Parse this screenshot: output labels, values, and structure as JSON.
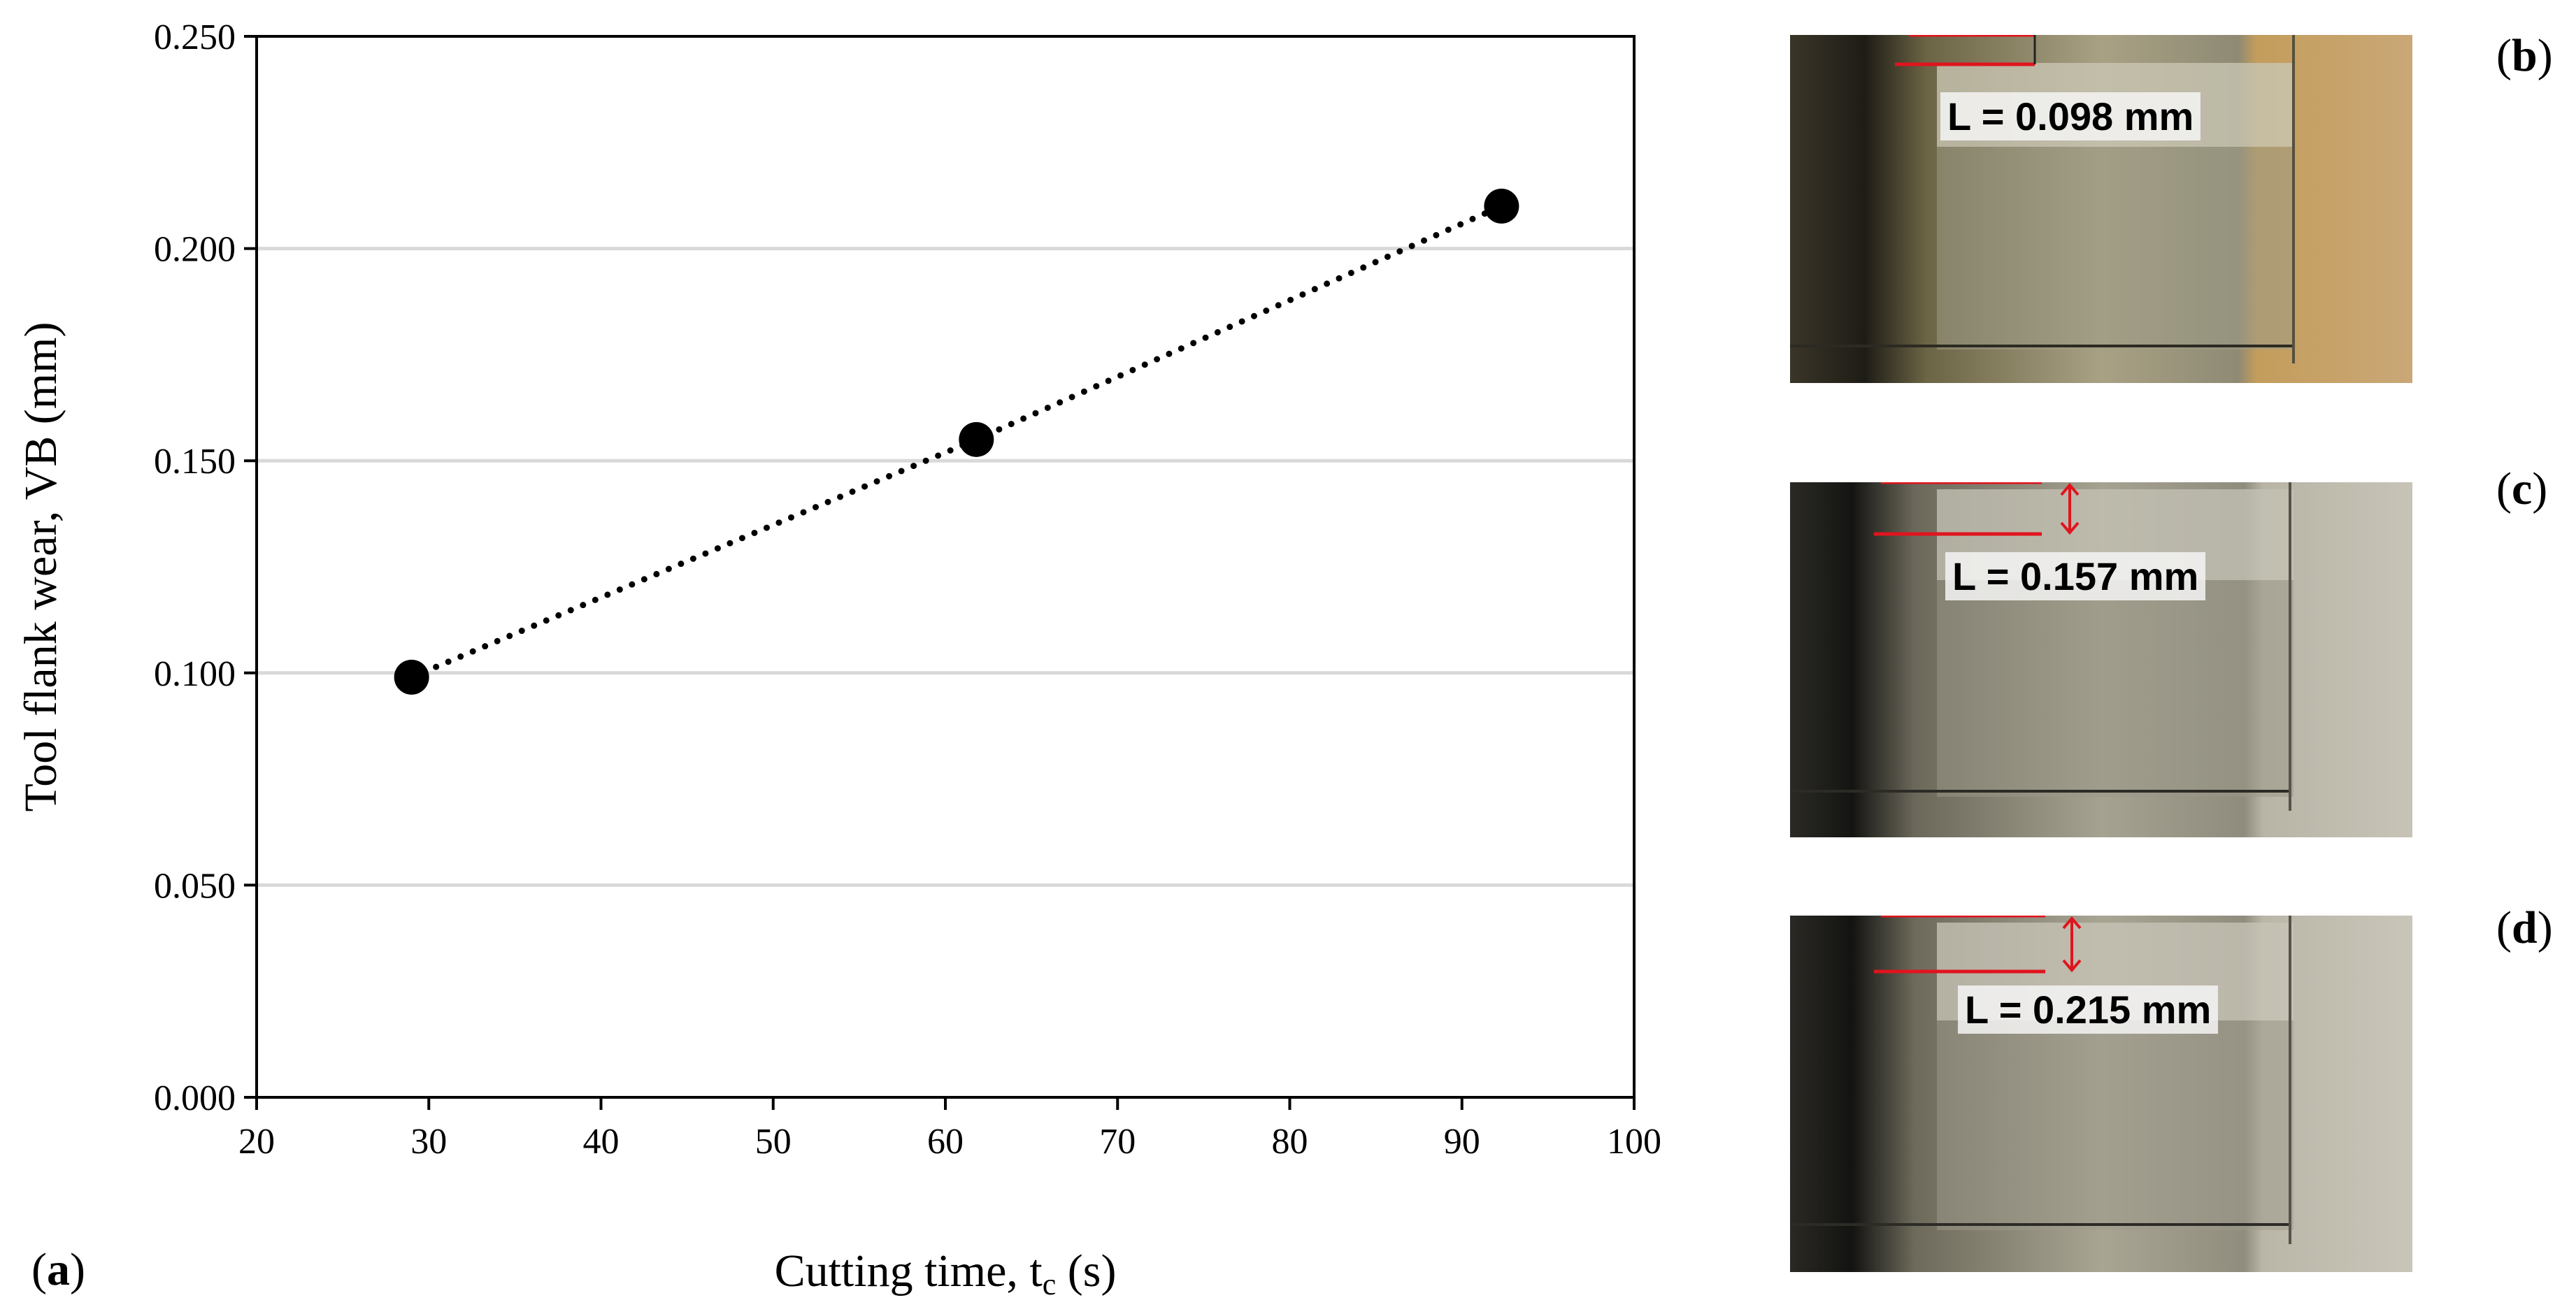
{
  "chart_data": {
    "type": "scatter",
    "title": "",
    "xlabel_main": "Cutting time, t",
    "xlabel_sub": "c",
    "xlabel_unit": " (s)",
    "ylabel": "Tool flank wear, VB (mm)",
    "xlim": [
      20,
      100
    ],
    "ylim": [
      0.0,
      0.25
    ],
    "x_ticks": [
      20,
      30,
      40,
      50,
      60,
      70,
      80,
      90,
      100
    ],
    "x_tick_labels": [
      "20",
      "30",
      "40",
      "50",
      "60",
      "70",
      "80",
      "90",
      "100"
    ],
    "y_ticks": [
      0.0,
      0.05,
      0.1,
      0.15,
      0.2,
      0.25
    ],
    "y_tick_labels": [
      "0.000",
      "0.050",
      "0.100",
      "0.150",
      "0.200",
      "0.250"
    ],
    "grid": "horizontal",
    "series": [
      {
        "name": "VB",
        "x": [
          29,
          61.8,
          92.3
        ],
        "y": [
          0.099,
          0.155,
          0.21
        ],
        "marker": "circle",
        "line": "dotted"
      }
    ],
    "panel_label": "a"
  },
  "photos": [
    {
      "panel": "b",
      "measurement": "L = 0.098 mm"
    },
    {
      "panel": "c",
      "measurement": "L = 0.157 mm"
    },
    {
      "panel": "d",
      "measurement": "L = 0.215 mm"
    }
  ],
  "colors": {
    "marker": "#000000",
    "grid": "#d9d9d9",
    "annotation": "#e0141e"
  }
}
